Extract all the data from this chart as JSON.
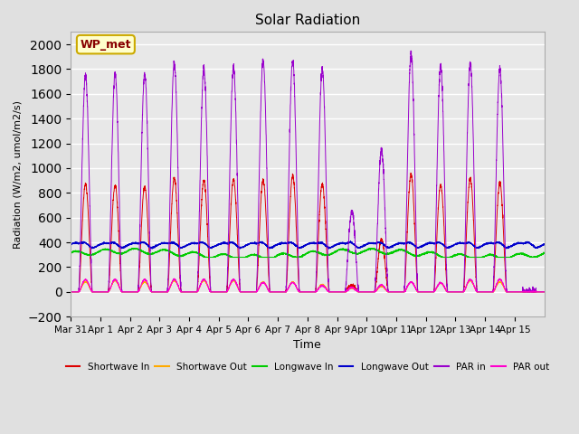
{
  "title": "Solar Radiation",
  "xlabel": "Time",
  "ylabel": "Radiation (W/m2, umol/m2/s)",
  "ylim": [
    -200,
    2100
  ],
  "yticks": [
    -200,
    0,
    200,
    400,
    600,
    800,
    1000,
    1200,
    1400,
    1600,
    1800,
    2000
  ],
  "background_color": "#e0e0e0",
  "plot_bg_color": "#e8e8e8",
  "label_box": "WP_met",
  "legend": [
    "Shortwave In",
    "Shortwave Out",
    "Longwave In",
    "Longwave Out",
    "PAR in",
    "PAR out"
  ],
  "colors": {
    "shortwave_in": "#dd0000",
    "shortwave_out": "#ffaa00",
    "longwave_in": "#00cc00",
    "longwave_out": "#0000cc",
    "par_in": "#9900cc",
    "par_out": "#ff00cc"
  },
  "n_days": 16,
  "shortwave_peaks": [
    870,
    860,
    850,
    920,
    900,
    910,
    900,
    940,
    870,
    50,
    420,
    950,
    860,
    920,
    880
  ],
  "par_in_peaks": [
    1750,
    1760,
    1760,
    1850,
    1800,
    1810,
    1870,
    1870,
    1800,
    650,
    1150,
    1920,
    1830,
    1840,
    1800
  ],
  "par_out_peaks": [
    100,
    100,
    100,
    100,
    100,
    100,
    75,
    75,
    50,
    35,
    55,
    80,
    75,
    100,
    100
  ],
  "shortwave_out_peaks": [
    80,
    90,
    80,
    90,
    90,
    90,
    80,
    80,
    60,
    30,
    45,
    80,
    70,
    90,
    80
  ],
  "longwave_in_base": 305,
  "longwave_in_range": [
    285,
    345
  ],
  "longwave_out_base": 375,
  "longwave_out_day_peak": 50
}
